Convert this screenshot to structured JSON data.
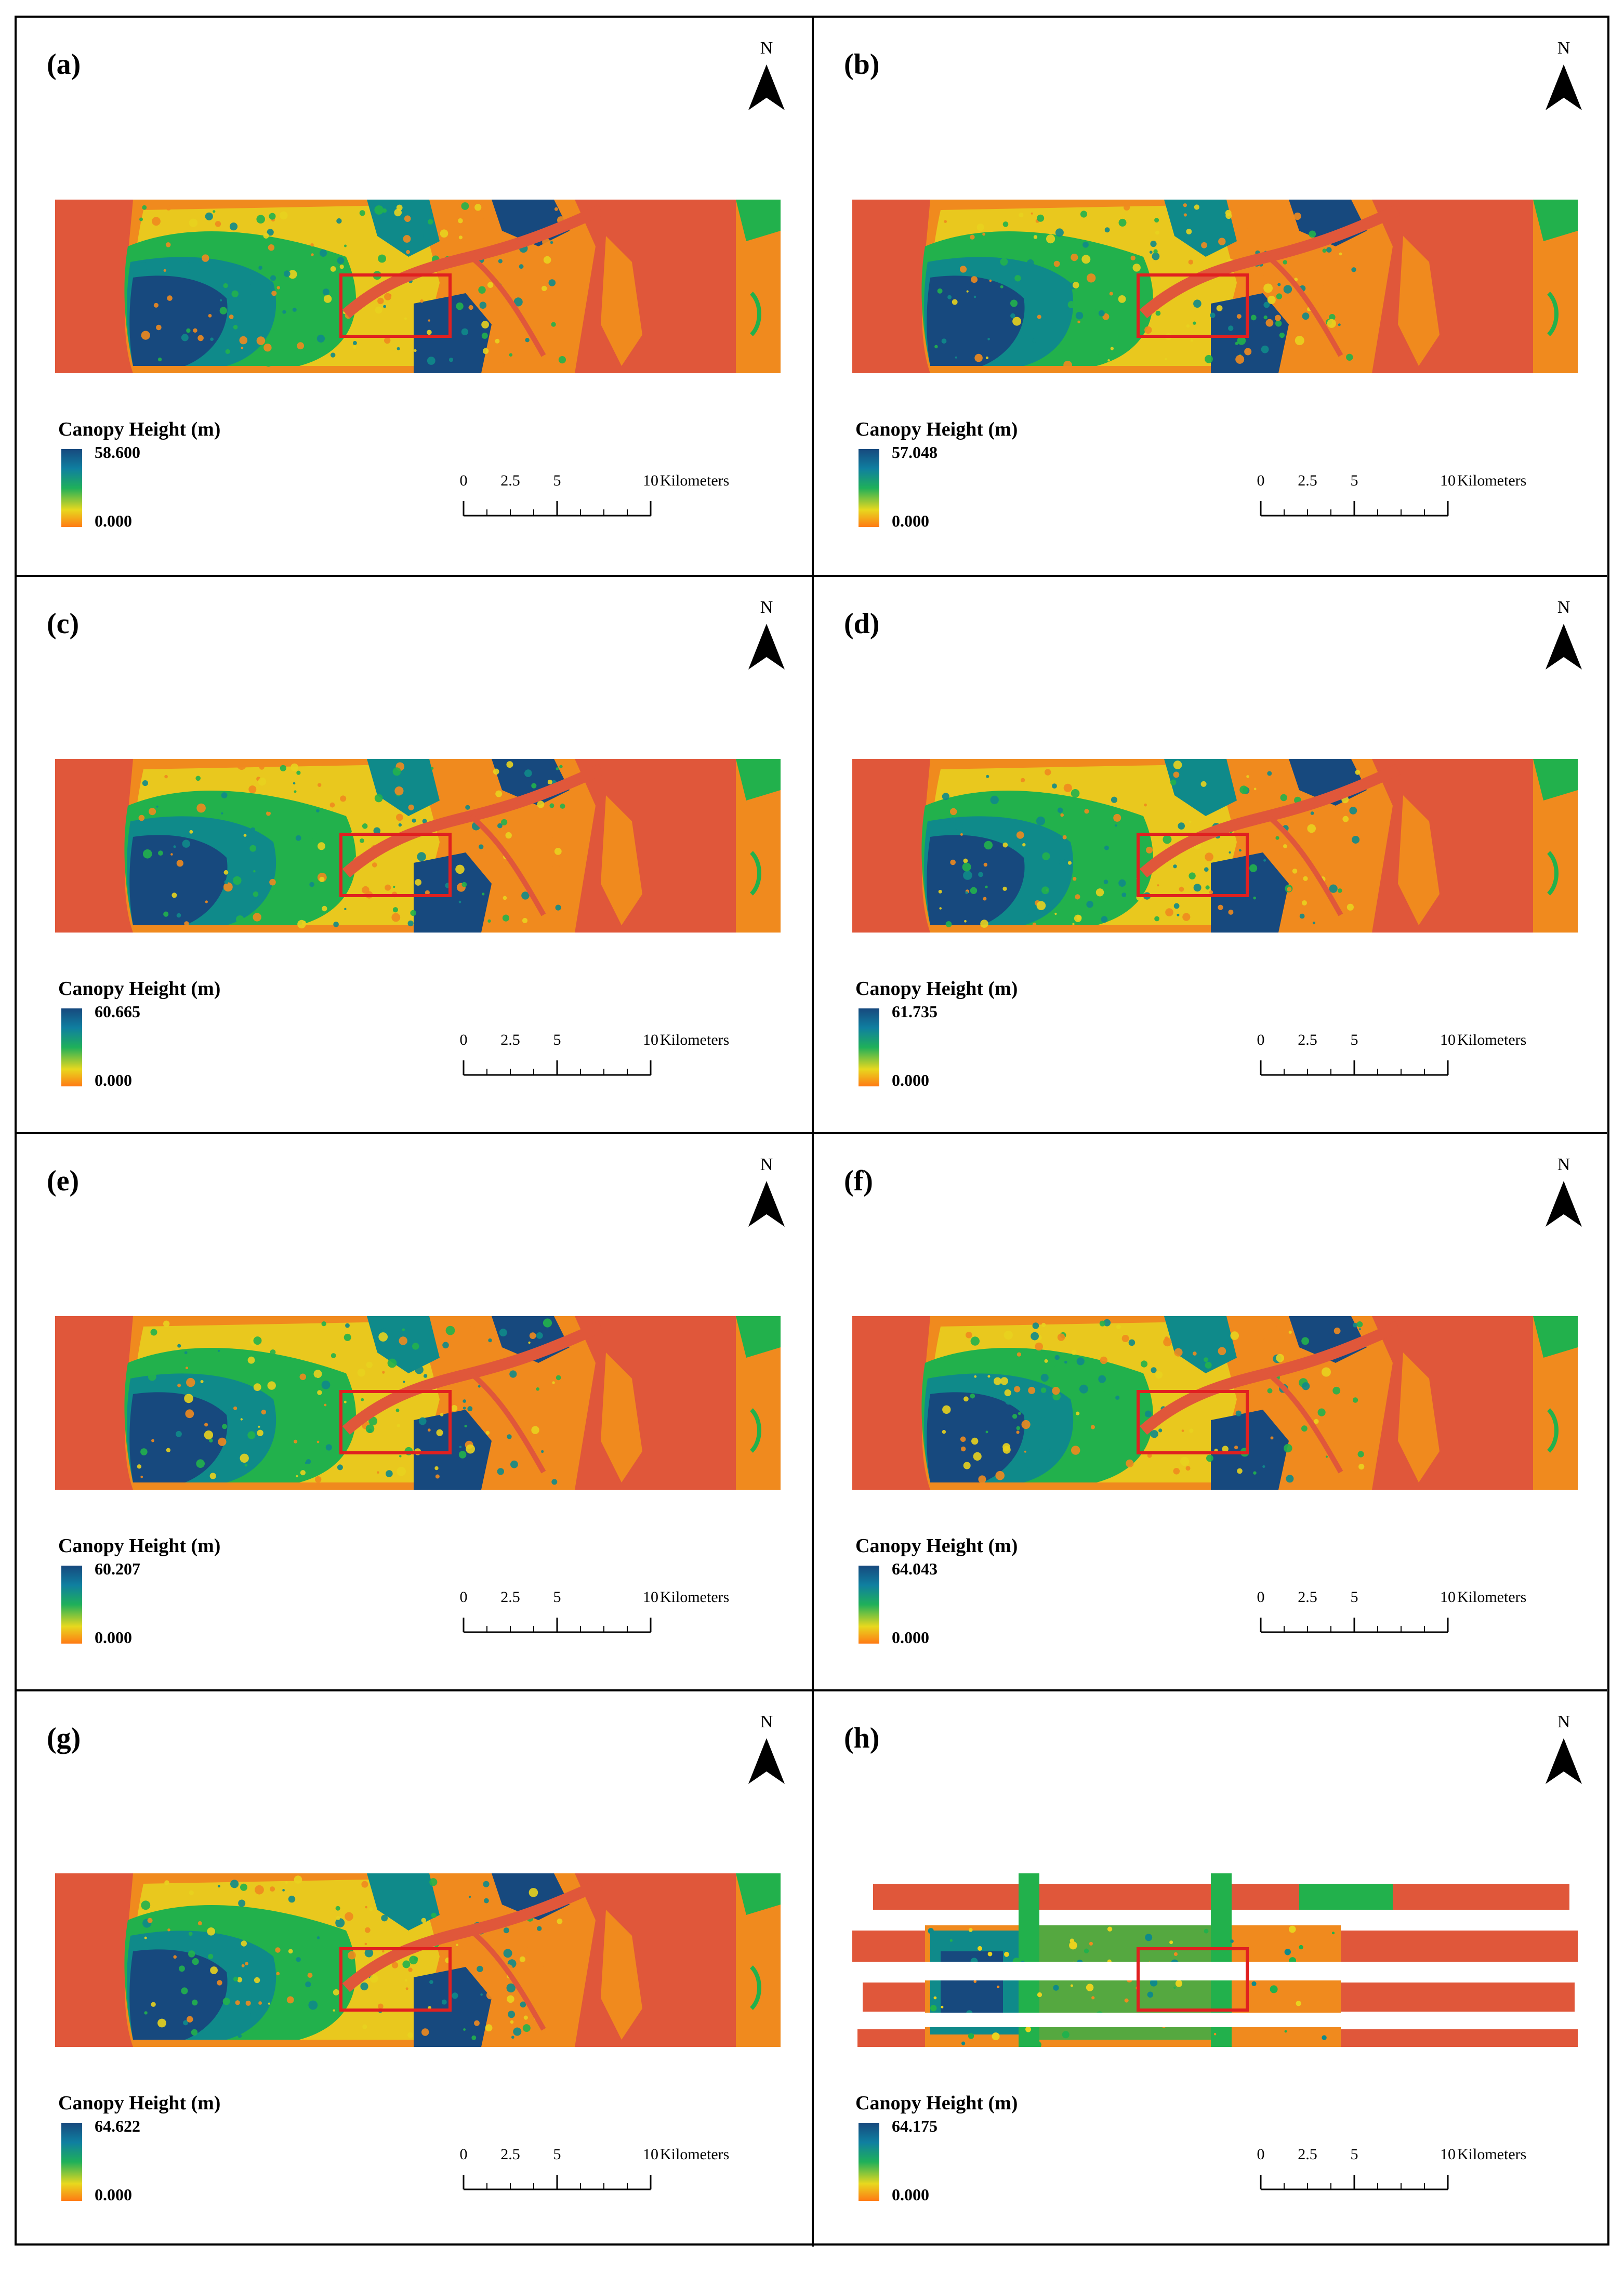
{
  "panels": [
    {
      "label": "(a)",
      "legend_title": "Canopy Height (m)",
      "legend_max": "58.600",
      "legend_min": "0.000",
      "variant": "full"
    },
    {
      "label": "(b)",
      "legend_title": "Canopy Height (m)",
      "legend_max": "57.048",
      "legend_min": "0.000",
      "variant": "full"
    },
    {
      "label": "(c)",
      "legend_title": "Canopy Height (m)",
      "legend_max": "60.665",
      "legend_min": "0.000",
      "variant": "full"
    },
    {
      "label": "(d)",
      "legend_title": "Canopy Height (m)",
      "legend_max": "61.735",
      "legend_min": "0.000",
      "variant": "full"
    },
    {
      "label": "(e)",
      "legend_title": "Canopy Height (m)",
      "legend_max": "60.207",
      "legend_min": "0.000",
      "variant": "full"
    },
    {
      "label": "(f)",
      "legend_title": "Canopy Height (m)",
      "legend_max": "64.043",
      "legend_min": "0.000",
      "variant": "full"
    },
    {
      "label": "(g)",
      "legend_title": "Canopy Height (m)",
      "legend_max": "64.622",
      "legend_min": "0.000",
      "variant": "full"
    },
    {
      "label": "(h)",
      "legend_title": "Canopy Height (m)",
      "legend_max": "64.175",
      "legend_min": "0.000",
      "variant": "strips"
    }
  ],
  "north_label": "N",
  "scale": {
    "ticks": [
      "0",
      "2.5",
      "5",
      "10"
    ],
    "unit": "Kilometers"
  },
  "colors": {
    "low": "#e0573a",
    "orange": "#f08a1e",
    "yellow": "#e8d21e",
    "green": "#22b14c",
    "teal": "#0f8a8a",
    "dark_blue": "#17497e",
    "inset_box": "#e02020"
  }
}
